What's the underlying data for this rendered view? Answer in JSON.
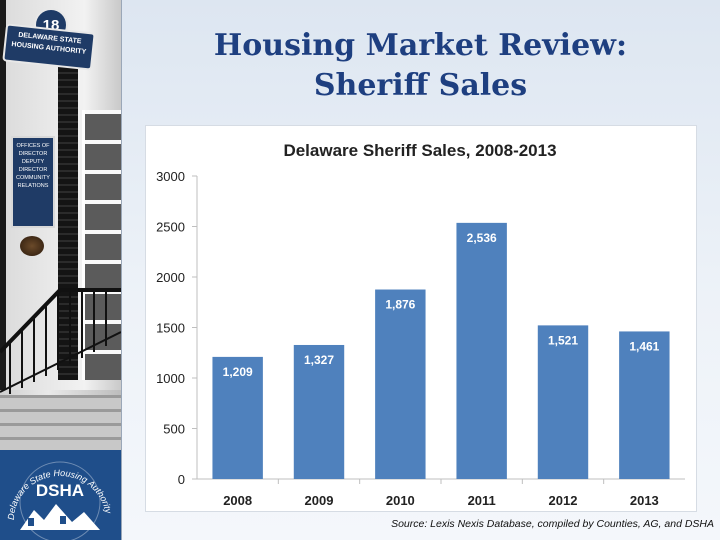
{
  "slide": {
    "title_line1": "Housing Market Review:",
    "title_line2": "Sheriff Sales",
    "source_note": "Source: Lexis Nexis Database, compiled by Counties, AG, and DSHA"
  },
  "photo_signs": {
    "number": "18",
    "agency_sign": "DELAWARE STATE HOUSING AUTHORITY",
    "plaque_lines": [
      "OFFICES OF",
      "DIRECTOR",
      "DEPUTY DIRECTOR",
      "COMMUNITY RELATIONS"
    ]
  },
  "logo": {
    "arc_text": "Delaware State Housing Authority",
    "initials": "DSHA"
  },
  "colors": {
    "bar": "#4f81bd",
    "title": "#1e3f80",
    "axis_text": "#222222",
    "logo_bg": "#1f4e8a"
  },
  "chart_data": {
    "type": "bar",
    "title": "Delaware Sheriff Sales, 2008-2013",
    "categories": [
      "2008",
      "2009",
      "2010",
      "2011",
      "2012",
      "2013"
    ],
    "values": [
      1209,
      1327,
      1876,
      2536,
      1521,
      1461
    ],
    "value_labels": [
      "1,209",
      "1,327",
      "1,876",
      "2,536",
      "1,521",
      "1,461"
    ],
    "xlabel": "",
    "ylabel": "",
    "ylim": [
      0,
      3000
    ],
    "yticks": [
      0,
      500,
      1000,
      1500,
      2000,
      2500,
      3000
    ],
    "grid": false,
    "legend": "none"
  }
}
